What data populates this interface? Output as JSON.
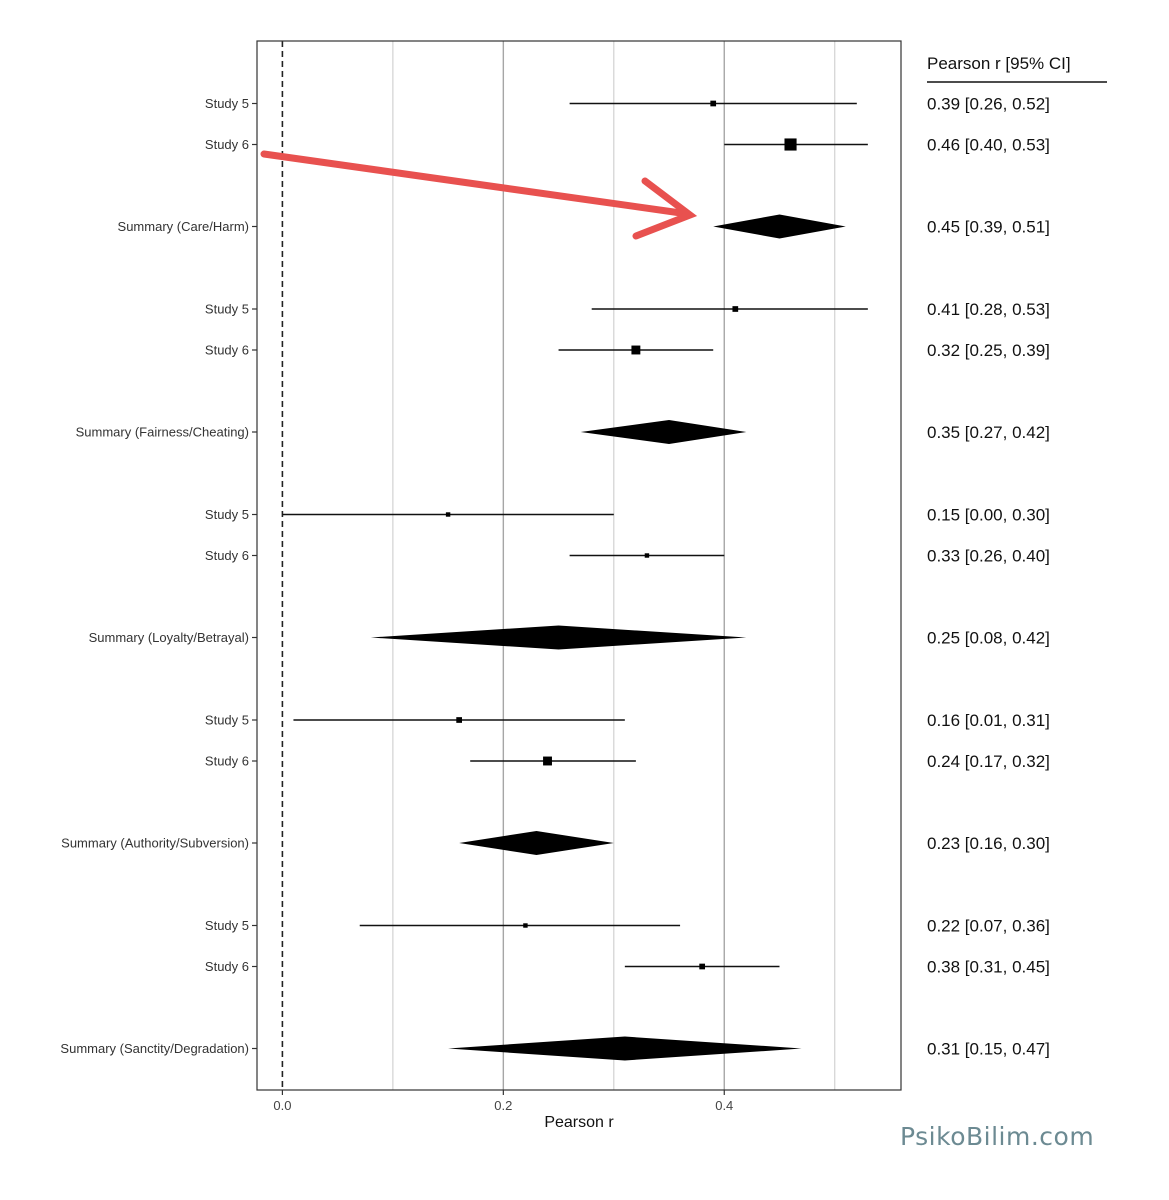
{
  "chart_data": {
    "type": "forest",
    "xlabel": "Pearson r",
    "column_header": "Pearson r [95% CI]",
    "xlim": [
      -0.023,
      0.56
    ],
    "xticks": [
      "0.0",
      "0.2",
      "0.4"
    ],
    "xtick_values": [
      0.0,
      0.2,
      0.4
    ],
    "grid_major": [
      0.0,
      0.2,
      0.4
    ],
    "grid_minor": [
      0.1,
      0.3,
      0.5
    ],
    "reference_line": 0.0,
    "rows": [
      {
        "label": "Study 5",
        "kind": "study",
        "est": 0.39,
        "lo": 0.26,
        "hi": 0.52,
        "weight": 1,
        "text": "0.39 [0.26, 0.52]"
      },
      {
        "label": "Study 6",
        "kind": "study",
        "est": 0.46,
        "lo": 0.4,
        "hi": 0.53,
        "weight": 3,
        "text": "0.46 [0.40, 0.53]"
      },
      {
        "label": "Summary (Care/Harm)",
        "kind": "summary",
        "est": 0.45,
        "lo": 0.39,
        "hi": 0.51,
        "text": "0.45 [0.39, 0.51]"
      },
      {
        "label": "Study 5",
        "kind": "study",
        "est": 0.41,
        "lo": 0.28,
        "hi": 0.53,
        "weight": 1,
        "text": "0.41 [0.28, 0.53]"
      },
      {
        "label": "Study 6",
        "kind": "study",
        "est": 0.32,
        "lo": 0.25,
        "hi": 0.39,
        "weight": 2,
        "text": "0.32 [0.25, 0.39]"
      },
      {
        "label": "Summary (Fairness/Cheating)",
        "kind": "summary",
        "est": 0.35,
        "lo": 0.27,
        "hi": 0.42,
        "text": "0.35 [0.27, 0.42]"
      },
      {
        "label": "Study 5",
        "kind": "study",
        "est": 0.15,
        "lo": 0.0,
        "hi": 0.3,
        "weight": 0.6,
        "text": "0.15 [0.00, 0.30]"
      },
      {
        "label": "Study 6",
        "kind": "study",
        "est": 0.33,
        "lo": 0.26,
        "hi": 0.4,
        "weight": 0.6,
        "text": "0.33 [0.26, 0.40]"
      },
      {
        "label": "Summary (Loyalty/Betrayal)",
        "kind": "summary",
        "est": 0.25,
        "lo": 0.08,
        "hi": 0.42,
        "text": "0.25 [0.08, 0.42]"
      },
      {
        "label": "Study 5",
        "kind": "study",
        "est": 0.16,
        "lo": 0.01,
        "hi": 0.31,
        "weight": 1,
        "text": "0.16 [0.01, 0.31]"
      },
      {
        "label": "Study 6",
        "kind": "study",
        "est": 0.24,
        "lo": 0.17,
        "hi": 0.32,
        "weight": 2,
        "text": "0.24 [0.17, 0.32]"
      },
      {
        "label": "Summary (Authority/Subversion)",
        "kind": "summary",
        "est": 0.23,
        "lo": 0.16,
        "hi": 0.3,
        "text": "0.23 [0.16, 0.30]"
      },
      {
        "label": "Study 5",
        "kind": "study",
        "est": 0.22,
        "lo": 0.07,
        "hi": 0.36,
        "weight": 0.6,
        "text": "0.22 [0.07, 0.36]"
      },
      {
        "label": "Study 6",
        "kind": "study",
        "est": 0.38,
        "lo": 0.31,
        "hi": 0.45,
        "weight": 1,
        "text": "0.38 [0.31, 0.45]"
      },
      {
        "label": "Summary (Sanctity/Degradation)",
        "kind": "summary",
        "est": 0.31,
        "lo": 0.15,
        "hi": 0.47,
        "text": "0.31 [0.15, 0.47]"
      }
    ],
    "annotation_arrow": {
      "color": "#e8514f",
      "points_to": "Summary (Care/Harm)"
    }
  },
  "watermark": "PsikoBilim.com"
}
